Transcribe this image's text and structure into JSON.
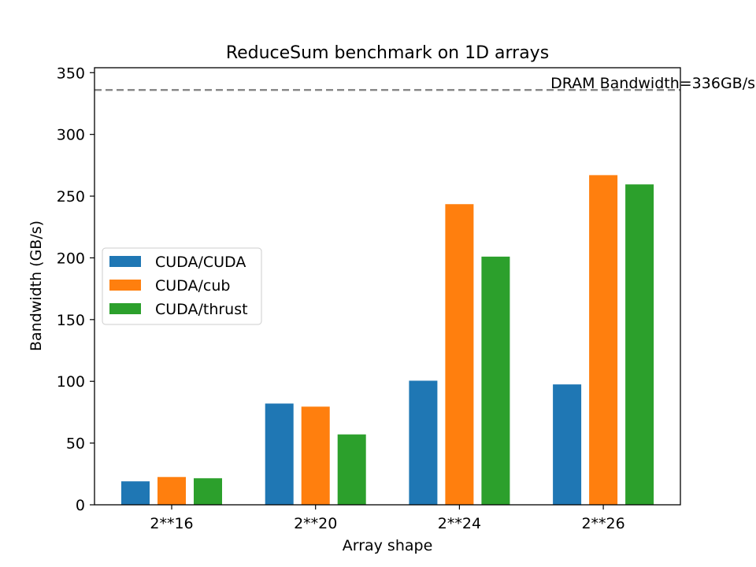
{
  "chart_data": {
    "type": "bar",
    "title": "ReduceSum benchmark on 1D arrays",
    "xlabel": "Array shape",
    "ylabel": "Bandwidth (GB/s)",
    "categories": [
      "2**16",
      "2**20",
      "2**24",
      "2**26"
    ],
    "ylim": [
      0,
      354
    ],
    "yticks": [
      0,
      50,
      100,
      150,
      200,
      250,
      300,
      350
    ],
    "grid": false,
    "legend_position": "center-left",
    "series": [
      {
        "name": "CUDA/CUDA",
        "color": "#1f77b4",
        "values": [
          19,
          82,
          100.5,
          97.5
        ]
      },
      {
        "name": "CUDA/cub",
        "color": "#ff7f0e",
        "values": [
          22.5,
          79.5,
          243.5,
          267
        ]
      },
      {
        "name": "CUDA/thrust",
        "color": "#2ca02c",
        "values": [
          21.5,
          57,
          201,
          259.5
        ]
      }
    ],
    "reference_line": {
      "value": 336,
      "label": "DRAM Bandwidth=336GB/s",
      "color": "#808080",
      "style": "dashed"
    }
  }
}
